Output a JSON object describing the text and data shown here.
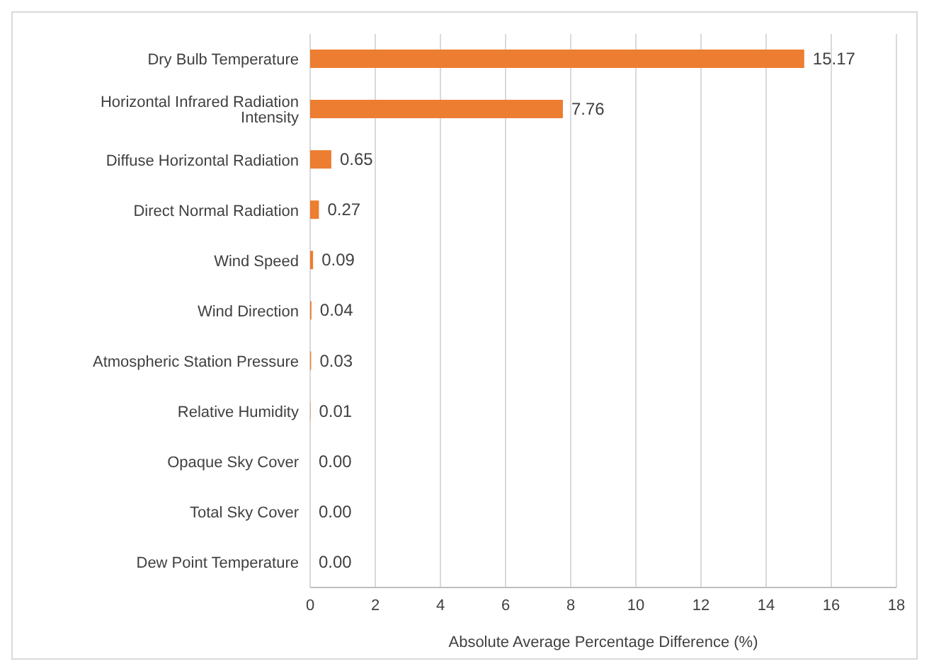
{
  "chart_data": {
    "type": "bar",
    "orientation": "horizontal",
    "xlabel": "Absolute Average Percentage Difference (%)",
    "categories": [
      "Dry Bulb Temperature",
      "Horizontal Infrared Radiation Intensity",
      "Diffuse Horizontal Radiation",
      "Direct Normal Radiation",
      "Wind Speed",
      "Wind Direction",
      "Atmospheric Station Pressure",
      "Relative Humidity",
      "Opaque Sky Cover",
      "Total Sky Cover",
      "Dew Point Temperature"
    ],
    "values": [
      15.17,
      7.76,
      0.65,
      0.27,
      0.09,
      0.04,
      0.03,
      0.01,
      0,
      0,
      0
    ],
    "value_labels": [
      "15.17",
      "7.76",
      "0.65",
      "0.27",
      "0.09",
      "0.04",
      "0.03",
      "0.01",
      "0.00",
      "0.00",
      "0.00"
    ],
    "color": "#ed7d31",
    "xlim": [
      0,
      18
    ],
    "xticks": [
      0,
      2,
      4,
      6,
      8,
      10,
      12,
      14,
      16,
      18
    ],
    "grid": "x",
    "legend": false
  }
}
